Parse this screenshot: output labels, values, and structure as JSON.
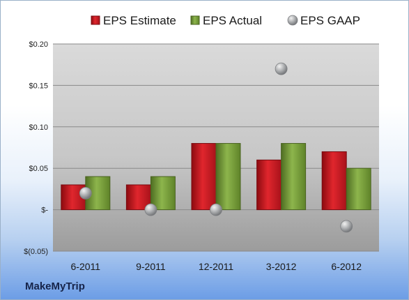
{
  "brand": "MakeMyTrip",
  "colors": {
    "estimate": "#c8151d",
    "actual": "#77a03a",
    "gaap": "#a6a9ac"
  },
  "chart_data": {
    "type": "bar",
    "categories": [
      "6-2011",
      "9-2011",
      "12-2011",
      "3-2012",
      "6-2012"
    ],
    "series": [
      {
        "name": "EPS Estimate",
        "type": "bar",
        "values": [
          0.03,
          0.03,
          0.08,
          0.06,
          0.07
        ]
      },
      {
        "name": "EPS Actual",
        "type": "bar",
        "values": [
          0.04,
          0.04,
          0.08,
          0.08,
          0.05
        ]
      },
      {
        "name": "EPS GAAP",
        "type": "scatter",
        "values": [
          0.02,
          0.0,
          0.0,
          0.17,
          -0.02
        ]
      }
    ],
    "yticks": [
      {
        "value": -0.05,
        "label": "$(0.05)"
      },
      {
        "value": 0.0,
        "label": "$-"
      },
      {
        "value": 0.05,
        "label": "$0.05"
      },
      {
        "value": 0.1,
        "label": "$0.10"
      },
      {
        "value": 0.15,
        "label": "$0.15"
      },
      {
        "value": 0.2,
        "label": "$0.20"
      }
    ],
    "ylim": [
      -0.05,
      0.2
    ],
    "grid": true,
    "legend": "top"
  }
}
